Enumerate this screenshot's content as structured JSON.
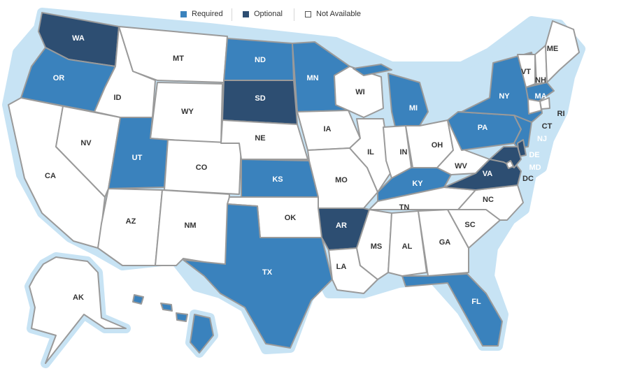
{
  "legend": {
    "required": "Required",
    "optional": "Optional",
    "not_available": "Not Available"
  },
  "colors": {
    "required": "#3a82bd",
    "optional": "#2d4e72",
    "not_available": "#ffffff",
    "halo": "#c7e3f4",
    "border": "#9a9a9a"
  },
  "states": [
    {
      "code": "WA",
      "status": "optional"
    },
    {
      "code": "OR",
      "status": "required"
    },
    {
      "code": "CA",
      "status": "not_available"
    },
    {
      "code": "NV",
      "status": "not_available"
    },
    {
      "code": "ID",
      "status": "not_available"
    },
    {
      "code": "MT",
      "status": "not_available"
    },
    {
      "code": "WY",
      "status": "not_available"
    },
    {
      "code": "UT",
      "status": "required"
    },
    {
      "code": "CO",
      "status": "not_available"
    },
    {
      "code": "AZ",
      "status": "not_available"
    },
    {
      "code": "NM",
      "status": "not_available"
    },
    {
      "code": "ND",
      "status": "required"
    },
    {
      "code": "SD",
      "status": "optional"
    },
    {
      "code": "NE",
      "status": "not_available"
    },
    {
      "code": "KS",
      "status": "required"
    },
    {
      "code": "OK",
      "status": "not_available"
    },
    {
      "code": "TX",
      "status": "required"
    },
    {
      "code": "MN",
      "status": "required"
    },
    {
      "code": "IA",
      "status": "not_available"
    },
    {
      "code": "MO",
      "status": "not_available"
    },
    {
      "code": "AR",
      "status": "optional"
    },
    {
      "code": "LA",
      "status": "not_available"
    },
    {
      "code": "WI",
      "status": "not_available"
    },
    {
      "code": "IL",
      "status": "not_available"
    },
    {
      "code": "MI",
      "status": "required"
    },
    {
      "code": "IN",
      "status": "not_available"
    },
    {
      "code": "OH",
      "status": "not_available"
    },
    {
      "code": "KY",
      "status": "required"
    },
    {
      "code": "TN",
      "status": "not_available"
    },
    {
      "code": "MS",
      "status": "not_available"
    },
    {
      "code": "AL",
      "status": "not_available"
    },
    {
      "code": "GA",
      "status": "not_available"
    },
    {
      "code": "FL",
      "status": "required"
    },
    {
      "code": "SC",
      "status": "not_available"
    },
    {
      "code": "NC",
      "status": "not_available"
    },
    {
      "code": "VA",
      "status": "optional"
    },
    {
      "code": "WV",
      "status": "not_available"
    },
    {
      "code": "PA",
      "status": "required"
    },
    {
      "code": "NY",
      "status": "required"
    },
    {
      "code": "VT",
      "status": "not_available"
    },
    {
      "code": "NH",
      "status": "not_available"
    },
    {
      "code": "ME",
      "status": "not_available"
    },
    {
      "code": "MA",
      "status": "required"
    },
    {
      "code": "RI",
      "status": "not_available"
    },
    {
      "code": "CT",
      "status": "not_available"
    },
    {
      "code": "NJ",
      "status": "required"
    },
    {
      "code": "DE",
      "status": "optional"
    },
    {
      "code": "MD",
      "status": "optional"
    },
    {
      "code": "DC",
      "status": "not_available"
    },
    {
      "code": "AK",
      "status": "not_available"
    },
    {
      "code": "HI",
      "status": "required"
    }
  ]
}
